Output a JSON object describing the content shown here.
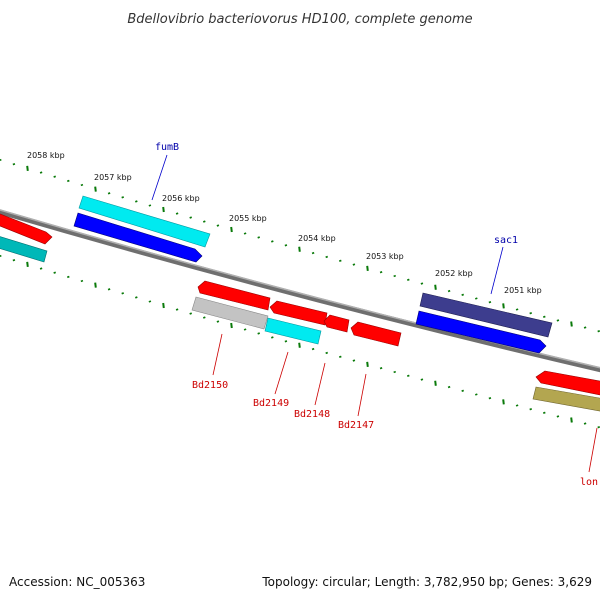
{
  "title": "Bdellovibrio bacteriovorus HD100, complete genome",
  "scale_ticks": [
    "2058 kbp",
    "2057 kbp",
    "2056 kbp",
    "2055 kbp",
    "2054 kbp",
    "2053 kbp",
    "2052 kbp",
    "2051 kbp"
  ],
  "genes": {
    "fumB": "fumB",
    "sac1": "sac1",
    "bd2150": "Bd2150",
    "bd2149": "Bd2149",
    "bd2148": "Bd2148",
    "bd2147": "Bd2147",
    "lon": "lon"
  },
  "footer": {
    "accession": "Accession: NC_005363",
    "summary": "Topology: circular; Length: 3,782,950 bp; Genes: 3,629"
  },
  "colors": {
    "cds_red": "#ff0000",
    "cds_blue": "#0000ff",
    "cds_cyan": "#00e5ee",
    "cds_teal": "#00b8b8",
    "cds_navy": "#3c3c8c",
    "cds_grey": "#bdbdbd",
    "cds_olive": "#b5a84e",
    "tick_green": "#0a7a0a",
    "label_blue": "#0000aa",
    "label_red": "#cc0000"
  }
}
